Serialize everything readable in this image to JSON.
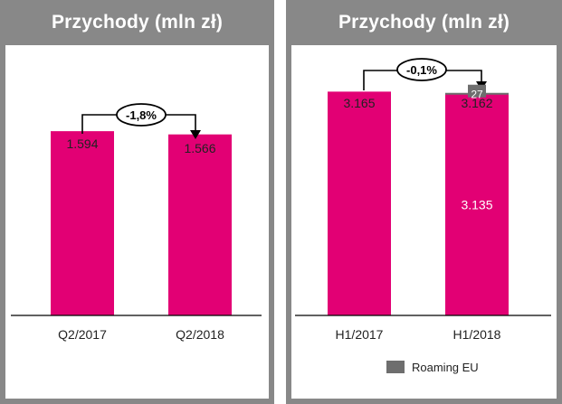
{
  "colors": {
    "bar": "#e20074",
    "roaming": "#6e6e6e",
    "header_bg": "#888888"
  },
  "chart_data": [
    {
      "type": "bar",
      "title": "Przychody (mln zł)",
      "categories": [
        "Q2/2017",
        "Q2/2018"
      ],
      "values": [
        1594,
        1566
      ],
      "value_labels": [
        "1.594",
        "1.566"
      ],
      "change_label": "-1,8%",
      "ylim": [
        0,
        1900
      ]
    },
    {
      "type": "bar",
      "title": "Przychody (mln zł)",
      "categories": [
        "H1/2017",
        "H1/2018"
      ],
      "series": [
        {
          "name": "Przychody",
          "values": [
            3165,
            3135
          ]
        },
        {
          "name": "Roaming EU",
          "values": [
            0,
            27
          ]
        }
      ],
      "total_labels": [
        "3.165",
        "3.162"
      ],
      "segment_labels": {
        "base": "3.135",
        "roaming": "27"
      },
      "change_label": "-0,1%",
      "legend": {
        "label": "Roaming EU",
        "position": "bottom"
      },
      "ylim": [
        0,
        3400
      ]
    }
  ]
}
